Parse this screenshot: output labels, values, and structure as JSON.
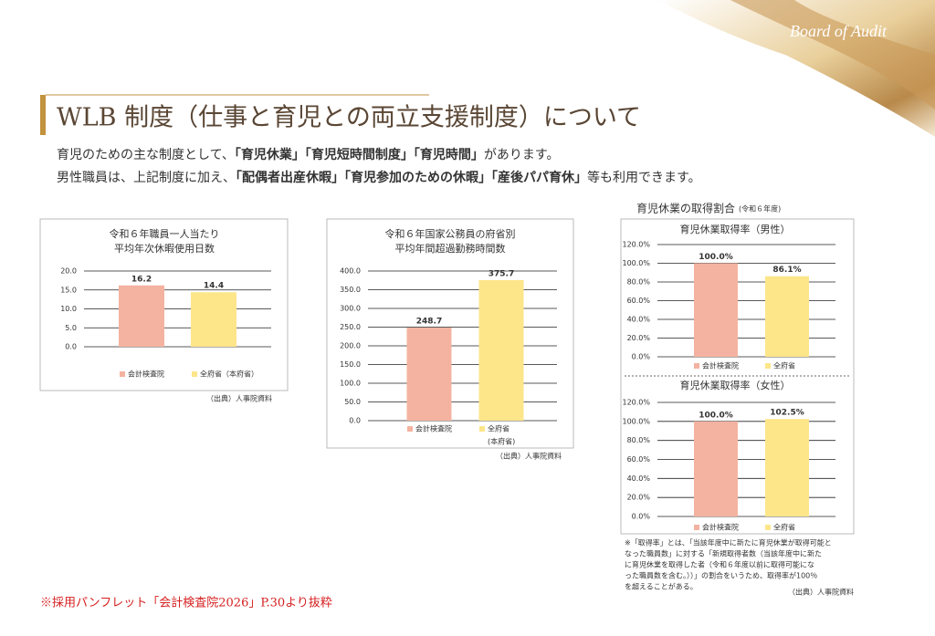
{
  "brand": "Board of Audit",
  "title": "WLB 制度（仕事と育児との両立支援制度）について",
  "intro": [
    [
      {
        "text": "育児のための主な制度として、"
      },
      {
        "text": "「育児休業」「育児短時間制度」「育児時間」",
        "bold": true
      },
      {
        "text": "があります。"
      }
    ],
    [
      {
        "text": "男性職員は、上記制度に加え、"
      },
      {
        "text": "「配偶者出産休暇」「育児参加のための休暇」「産後パパ育休」",
        "bold": true
      },
      {
        "text": "等も利用できます。"
      }
    ]
  ],
  "group_title": "育児休業の取得割合",
  "group_note": "(令和６年度)",
  "chart_data": [
    {
      "type": "bar",
      "title": [
        "令和６年職員一人当たり",
        "平均年次休暇使用日数"
      ],
      "categories": [
        "会計検査院",
        "全府省（本府省）"
      ],
      "values": [
        16.2,
        14.4
      ],
      "colors": [
        "#f4b3a0",
        "#fde58a"
      ],
      "ylim": [
        0,
        20
      ],
      "yticks": [
        {
          "value": 20,
          "label": "20.0"
        },
        {
          "value": 15,
          "label": "15.0"
        },
        {
          "value": 10,
          "label": "10.0"
        },
        {
          "value": 5,
          "label": "5.0"
        },
        {
          "value": 0,
          "label": "0.0"
        }
      ],
      "grid": true,
      "source": "（出典）人事院資料"
    },
    {
      "type": "bar",
      "title": [
        "令和６年国家公務員の府省別",
        "平均年間超過勤務時間数"
      ],
      "categories": [
        "会計検査院",
        "全府省"
      ],
      "legend_note": "(本府省)",
      "values": [
        248.7,
        375.7
      ],
      "colors": [
        "#f4b3a0",
        "#fde58a"
      ],
      "ylim": [
        0,
        400
      ],
      "yticks": [
        {
          "value": 400,
          "label": "400.0"
        },
        {
          "value": 350,
          "label": "350.0"
        },
        {
          "value": 300,
          "label": "300.0"
        },
        {
          "value": 250,
          "label": "250.0"
        },
        {
          "value": 200,
          "label": "200.0"
        },
        {
          "value": 150,
          "label": "150.0"
        },
        {
          "value": 100,
          "label": "100.0"
        },
        {
          "value": 50,
          "label": "50.0"
        },
        {
          "value": 0,
          "label": "0.0"
        }
      ],
      "grid": true,
      "source": "（出典）人事院資料"
    },
    {
      "type": "bar",
      "title": [
        "育児休業取得率（男性）"
      ],
      "categories": [
        "会計検査院",
        "全府省"
      ],
      "values": [
        100,
        86.1
      ],
      "value_labels": [
        "100.0%",
        "86.1%"
      ],
      "colors": [
        "#f4b3a0",
        "#fde58a"
      ],
      "ylim": [
        0,
        120
      ],
      "yticks": [
        {
          "value": 120,
          "label": "120.0%"
        },
        {
          "value": 100,
          "label": "100.0%"
        },
        {
          "value": 80,
          "label": "80.0%"
        },
        {
          "value": 60,
          "label": "60.0%"
        },
        {
          "value": 40,
          "label": "40.0%"
        },
        {
          "value": 20,
          "label": "20.0%"
        },
        {
          "value": 0,
          "label": "0.0%"
        }
      ],
      "grid": true
    },
    {
      "type": "bar",
      "title": [
        "育児休業取得率（女性）"
      ],
      "categories": [
        "会計検査院",
        "全府省"
      ],
      "values": [
        100,
        102.5
      ],
      "value_labels": [
        "100.0%",
        "102.5%"
      ],
      "colors": [
        "#f4b3a0",
        "#fde58a"
      ],
      "ylim": [
        0,
        120
      ],
      "yticks": [
        {
          "value": 120,
          "label": "120.0%"
        },
        {
          "value": 100,
          "label": "100.0%"
        },
        {
          "value": 80,
          "label": "80.0%"
        },
        {
          "value": 60,
          "label": "60.0%"
        },
        {
          "value": 40,
          "label": "40.0%"
        },
        {
          "value": 20,
          "label": "20.0%"
        },
        {
          "value": 0,
          "label": "0.0%"
        }
      ],
      "grid": true
    }
  ],
  "footnote": [
    "※「取得率」とは、「当該年度中に新たに育児休業が取得可能と",
    "なった職員数」に対する「新規取得者数（当該年度中に新た",
    "に育児休業を取得した者（令和６年度以前に取得可能にな",
    "った職員数を含む。））」の割合をいうため、取得率が100％",
    "を超えることがある。"
  ],
  "footnote_source": "（出典）人事院資料",
  "excerpt": "※採用パンフレット「会計検査院2026」P.30より抜粋"
}
